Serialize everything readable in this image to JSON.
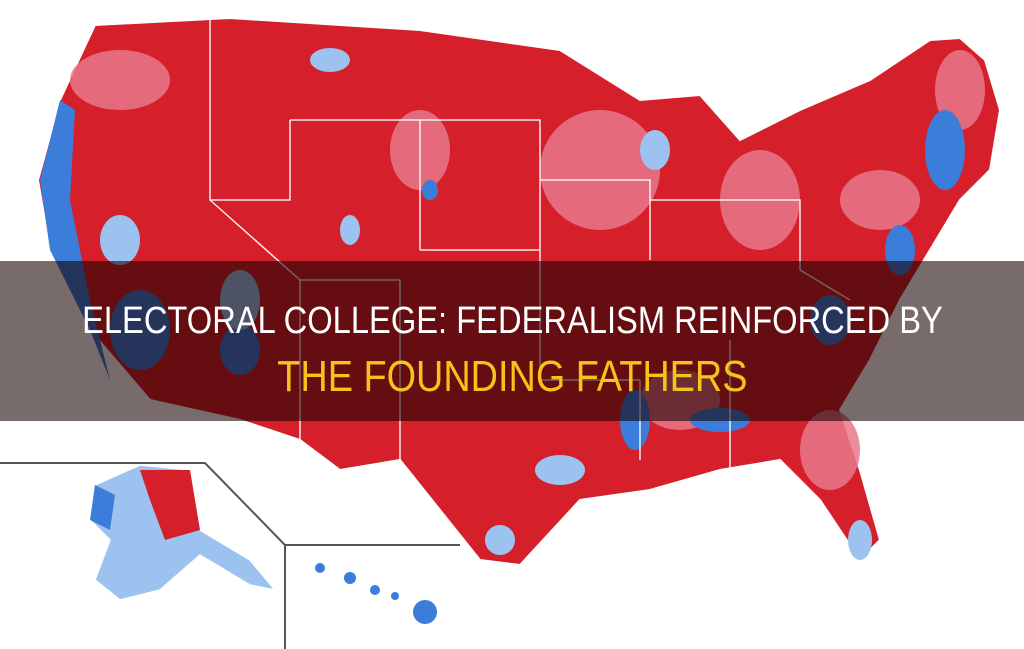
{
  "title": {
    "line1": "ELECTORAL COLLEGE: FEDERALISM REINFORCED BY",
    "line2": "THE FOUNDING FATHERS"
  },
  "colors": {
    "republican": "#d7191c",
    "republican_light": "#e8788a",
    "democrat": "#3b7dd8",
    "democrat_light": "#9cc3f0",
    "title_white": "#ffffff",
    "title_yellow": "#f6c21c"
  }
}
